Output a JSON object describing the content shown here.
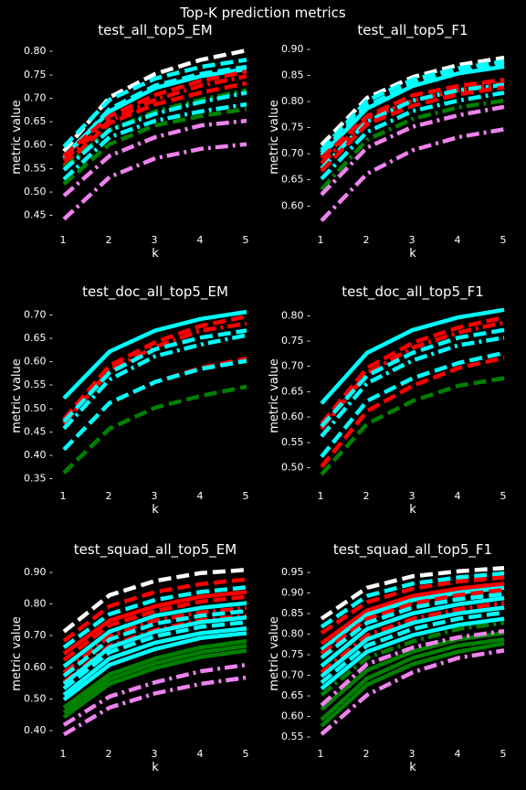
{
  "figure": {
    "title": "Top-K prediction metrics"
  },
  "colors": {
    "background": "#000000",
    "text": "#ffffff",
    "white": "#ffffff",
    "cyan": "#00ffff",
    "red": "#ff0000",
    "green": "#008000",
    "violet": "#ee82ee"
  },
  "chart_data": [
    {
      "type": "line",
      "title": "test_all_top5_EM",
      "xlabel": "k",
      "ylabel": "metric value",
      "x": [
        1,
        2,
        3,
        4,
        5
      ],
      "xticks": [
        1,
        2,
        3,
        4,
        5
      ],
      "ylim": [
        0.42,
        0.81
      ],
      "yticks": [
        0.45,
        0.5,
        0.55,
        0.6,
        0.65,
        0.7,
        0.75,
        0.8
      ],
      "grid": false,
      "series": [
        {
          "color": "white",
          "style": "dash",
          "values": [
            0.585,
            0.7,
            0.75,
            0.78,
            0.8
          ]
        },
        {
          "color": "cyan",
          "style": "dash",
          "values": [
            0.595,
            0.695,
            0.74,
            0.765,
            0.78
          ]
        },
        {
          "color": "cyan",
          "style": "solid",
          "values": [
            0.575,
            0.67,
            0.72,
            0.745,
            0.76
          ]
        },
        {
          "color": "cyan",
          "style": "dash",
          "values": [
            0.57,
            0.675,
            0.725,
            0.75,
            0.765
          ]
        },
        {
          "color": "red",
          "style": "dash",
          "values": [
            0.575,
            0.66,
            0.705,
            0.735,
            0.755
          ]
        },
        {
          "color": "red",
          "style": "dashdot",
          "values": [
            0.565,
            0.65,
            0.695,
            0.725,
            0.745
          ]
        },
        {
          "color": "red",
          "style": "dash",
          "values": [
            0.555,
            0.645,
            0.685,
            0.71,
            0.73
          ]
        },
        {
          "color": "green",
          "style": "dashdot",
          "values": [
            0.55,
            0.63,
            0.67,
            0.695,
            0.715
          ]
        },
        {
          "color": "cyan",
          "style": "dashdot",
          "values": [
            0.545,
            0.63,
            0.665,
            0.69,
            0.71
          ]
        },
        {
          "color": "cyan",
          "style": "dashdot",
          "values": [
            0.525,
            0.615,
            0.65,
            0.67,
            0.685
          ]
        },
        {
          "color": "green",
          "style": "dash",
          "values": [
            0.515,
            0.6,
            0.64,
            0.66,
            0.675
          ]
        },
        {
          "color": "violet",
          "style": "dashdot",
          "values": [
            0.49,
            0.575,
            0.615,
            0.64,
            0.65
          ]
        },
        {
          "color": "violet",
          "style": "dashdot",
          "values": [
            0.44,
            0.53,
            0.57,
            0.59,
            0.6
          ]
        }
      ]
    },
    {
      "type": "line",
      "title": "test_all_top5_F1",
      "xlabel": "k",
      "ylabel": "metric value",
      "x": [
        1,
        2,
        3,
        4,
        5
      ],
      "xticks": [
        1,
        2,
        3,
        4,
        5
      ],
      "ylim": [
        0.555,
        0.905
      ],
      "yticks": [
        0.6,
        0.65,
        0.7,
        0.75,
        0.8,
        0.85,
        0.9
      ],
      "grid": false,
      "series": [
        {
          "color": "white",
          "style": "dash",
          "values": [
            0.715,
            0.805,
            0.845,
            0.868,
            0.882
          ]
        },
        {
          "color": "cyan",
          "style": "dash",
          "values": [
            0.705,
            0.8,
            0.84,
            0.862,
            0.875
          ]
        },
        {
          "color": "cyan",
          "style": "solid",
          "values": [
            0.695,
            0.785,
            0.828,
            0.852,
            0.865
          ]
        },
        {
          "color": "cyan",
          "style": "dash",
          "values": [
            0.7,
            0.79,
            0.832,
            0.855,
            0.868
          ]
        },
        {
          "color": "red",
          "style": "dash",
          "values": [
            0.69,
            0.77,
            0.81,
            0.828,
            0.84
          ]
        },
        {
          "color": "red",
          "style": "dashdot",
          "values": [
            0.68,
            0.765,
            0.8,
            0.82,
            0.833
          ]
        },
        {
          "color": "cyan",
          "style": "dashdot",
          "values": [
            0.67,
            0.76,
            0.8,
            0.82,
            0.83
          ]
        },
        {
          "color": "red",
          "style": "dash",
          "values": [
            0.665,
            0.755,
            0.79,
            0.812,
            0.825
          ]
        },
        {
          "color": "cyan",
          "style": "dashdot",
          "values": [
            0.65,
            0.74,
            0.78,
            0.8,
            0.815
          ]
        },
        {
          "color": "green",
          "style": "dashdot",
          "values": [
            0.63,
            0.725,
            0.765,
            0.787,
            0.8
          ]
        },
        {
          "color": "violet",
          "style": "dashdot",
          "values": [
            0.62,
            0.71,
            0.75,
            0.772,
            0.788
          ]
        },
        {
          "color": "violet",
          "style": "dashdot",
          "values": [
            0.57,
            0.66,
            0.705,
            0.73,
            0.745
          ]
        }
      ]
    },
    {
      "type": "line",
      "title": "test_doc_all_top5_EM",
      "xlabel": "k",
      "ylabel": "metric value",
      "x": [
        1,
        2,
        3,
        4,
        5
      ],
      "xticks": [
        1,
        2,
        3,
        4,
        5
      ],
      "ylim": [
        0.335,
        0.715
      ],
      "yticks": [
        0.35,
        0.4,
        0.45,
        0.5,
        0.55,
        0.6,
        0.65,
        0.7
      ],
      "grid": false,
      "series": [
        {
          "color": "cyan",
          "style": "solid",
          "values": [
            0.52,
            0.62,
            0.665,
            0.69,
            0.705
          ]
        },
        {
          "color": "red",
          "style": "dash",
          "values": [
            0.475,
            0.59,
            0.64,
            0.675,
            0.695
          ]
        },
        {
          "color": "red",
          "style": "dashdot",
          "values": [
            0.465,
            0.58,
            0.63,
            0.665,
            0.68
          ]
        },
        {
          "color": "cyan",
          "style": "dash",
          "values": [
            0.47,
            0.575,
            0.625,
            0.65,
            0.665
          ]
        },
        {
          "color": "cyan",
          "style": "dashdot",
          "values": [
            0.455,
            0.56,
            0.61,
            0.635,
            0.655
          ]
        },
        {
          "color": "red",
          "style": "dash",
          "values": [
            0.41,
            0.51,
            0.555,
            0.585,
            0.605
          ]
        },
        {
          "color": "cyan",
          "style": "dash",
          "values": [
            0.41,
            0.51,
            0.555,
            0.583,
            0.6
          ]
        },
        {
          "color": "green",
          "style": "dash",
          "values": [
            0.36,
            0.455,
            0.5,
            0.525,
            0.545
          ]
        }
      ]
    },
    {
      "type": "line",
      "title": "test_doc_all_top5_F1",
      "xlabel": "k",
      "ylabel": "metric value",
      "x": [
        1,
        2,
        3,
        4,
        5
      ],
      "xticks": [
        1,
        2,
        3,
        4,
        5
      ],
      "ylim": [
        0.465,
        0.815
      ],
      "yticks": [
        0.5,
        0.55,
        0.6,
        0.65,
        0.7,
        0.75,
        0.8
      ],
      "grid": false,
      "series": [
        {
          "color": "cyan",
          "style": "solid",
          "values": [
            0.625,
            0.725,
            0.77,
            0.795,
            0.81
          ]
        },
        {
          "color": "red",
          "style": "dash",
          "values": [
            0.585,
            0.695,
            0.745,
            0.775,
            0.795
          ]
        },
        {
          "color": "red",
          "style": "dashdot",
          "values": [
            0.575,
            0.685,
            0.735,
            0.765,
            0.785
          ]
        },
        {
          "color": "cyan",
          "style": "dash",
          "values": [
            0.58,
            0.68,
            0.725,
            0.755,
            0.77
          ]
        },
        {
          "color": "cyan",
          "style": "dashdot",
          "values": [
            0.56,
            0.665,
            0.71,
            0.74,
            0.755
          ]
        },
        {
          "color": "cyan",
          "style": "dash",
          "values": [
            0.52,
            0.63,
            0.675,
            0.705,
            0.725
          ]
        },
        {
          "color": "red",
          "style": "dash",
          "values": [
            0.5,
            0.61,
            0.66,
            0.695,
            0.715
          ]
        },
        {
          "color": "green",
          "style": "dash",
          "values": [
            0.485,
            0.585,
            0.63,
            0.66,
            0.675
          ]
        }
      ]
    },
    {
      "type": "line",
      "title": "test_squad_all_top5_EM",
      "xlabel": "k",
      "ylabel": "metric value",
      "x": [
        1,
        2,
        3,
        4,
        5
      ],
      "xticks": [
        1,
        2,
        3,
        4,
        5
      ],
      "ylim": [
        0.36,
        0.92
      ],
      "yticks": [
        0.4,
        0.5,
        0.6,
        0.7,
        0.8,
        0.9
      ],
      "grid": false,
      "series": [
        {
          "color": "white",
          "style": "dash",
          "values": [
            0.71,
            0.825,
            0.87,
            0.895,
            0.905
          ]
        },
        {
          "color": "red",
          "style": "dash",
          "values": [
            0.68,
            0.79,
            0.835,
            0.86,
            0.875
          ]
        },
        {
          "color": "cyan",
          "style": "dash",
          "values": [
            0.66,
            0.765,
            0.81,
            0.835,
            0.85
          ]
        },
        {
          "color": "red",
          "style": "solid",
          "values": [
            0.64,
            0.745,
            0.79,
            0.82,
            0.835
          ]
        },
        {
          "color": "red",
          "style": "dash",
          "values": [
            0.62,
            0.73,
            0.775,
            0.805,
            0.82
          ]
        },
        {
          "color": "cyan",
          "style": "solid",
          "values": [
            0.6,
            0.71,
            0.76,
            0.785,
            0.8
          ]
        },
        {
          "color": "red",
          "style": "dashdot",
          "values": [
            0.58,
            0.695,
            0.745,
            0.77,
            0.785
          ]
        },
        {
          "color": "cyan",
          "style": "dash",
          "values": [
            0.57,
            0.685,
            0.735,
            0.76,
            0.775
          ]
        },
        {
          "color": "red",
          "style": "dashdot",
          "values": [
            0.55,
            0.665,
            0.715,
            0.745,
            0.76
          ]
        },
        {
          "color": "cyan",
          "style": "solid",
          "values": [
            0.545,
            0.66,
            0.71,
            0.74,
            0.755
          ]
        },
        {
          "color": "cyan",
          "style": "dash",
          "values": [
            0.53,
            0.645,
            0.695,
            0.725,
            0.74
          ]
        },
        {
          "color": "cyan",
          "style": "solid",
          "values": [
            0.51,
            0.625,
            0.675,
            0.705,
            0.72
          ]
        },
        {
          "color": "cyan",
          "style": "solid",
          "values": [
            0.495,
            0.605,
            0.655,
            0.69,
            0.705
          ]
        },
        {
          "color": "green",
          "style": "solid",
          "values": [
            0.47,
            0.575,
            0.625,
            0.66,
            0.68
          ]
        },
        {
          "color": "green",
          "style": "solid",
          "values": [
            0.455,
            0.56,
            0.61,
            0.645,
            0.665
          ]
        },
        {
          "color": "green",
          "style": "solid",
          "values": [
            0.44,
            0.545,
            0.595,
            0.63,
            0.65
          ]
        },
        {
          "color": "violet",
          "style": "dashdot",
          "values": [
            0.415,
            0.505,
            0.55,
            0.585,
            0.605
          ]
        },
        {
          "color": "violet",
          "style": "dashdot",
          "values": [
            0.385,
            0.47,
            0.515,
            0.545,
            0.565
          ]
        }
      ]
    },
    {
      "type": "line",
      "title": "test_squad_all_top5_F1",
      "xlabel": "k",
      "ylabel": "metric value",
      "x": [
        1,
        2,
        3,
        4,
        5
      ],
      "xticks": [
        1,
        2,
        3,
        4,
        5
      ],
      "ylim": [
        0.535,
        0.965
      ],
      "yticks": [
        0.55,
        0.6,
        0.65,
        0.7,
        0.75,
        0.8,
        0.85,
        0.9,
        0.95
      ],
      "grid": false,
      "series": [
        {
          "color": "white",
          "style": "dash",
          "values": [
            0.835,
            0.91,
            0.938,
            0.95,
            0.958
          ]
        },
        {
          "color": "cyan",
          "style": "dash",
          "values": [
            0.815,
            0.89,
            0.92,
            0.935,
            0.945
          ]
        },
        {
          "color": "red",
          "style": "dash",
          "values": [
            0.8,
            0.875,
            0.908,
            0.925,
            0.935
          ]
        },
        {
          "color": "red",
          "style": "solid",
          "values": [
            0.775,
            0.855,
            0.89,
            0.908,
            0.92
          ]
        },
        {
          "color": "cyan",
          "style": "solid",
          "values": [
            0.76,
            0.845,
            0.88,
            0.898,
            0.91
          ]
        },
        {
          "color": "red",
          "style": "dash",
          "values": [
            0.75,
            0.835,
            0.872,
            0.892,
            0.905
          ]
        },
        {
          "color": "cyan",
          "style": "dash",
          "values": [
            0.74,
            0.825,
            0.862,
            0.882,
            0.895
          ]
        },
        {
          "color": "cyan",
          "style": "solid",
          "values": [
            0.72,
            0.81,
            0.848,
            0.87,
            0.885
          ]
        },
        {
          "color": "red",
          "style": "dashdot",
          "values": [
            0.705,
            0.795,
            0.835,
            0.858,
            0.873
          ]
        },
        {
          "color": "cyan",
          "style": "solid",
          "values": [
            0.695,
            0.785,
            0.825,
            0.848,
            0.862
          ]
        },
        {
          "color": "cyan",
          "style": "dash",
          "values": [
            0.68,
            0.77,
            0.81,
            0.835,
            0.85
          ]
        },
        {
          "color": "cyan",
          "style": "solid",
          "values": [
            0.665,
            0.755,
            0.795,
            0.82,
            0.835
          ]
        },
        {
          "color": "green",
          "style": "dashdot",
          "values": [
            0.65,
            0.74,
            0.78,
            0.81,
            0.825
          ]
        },
        {
          "color": "green",
          "style": "solid",
          "values": [
            0.615,
            0.71,
            0.755,
            0.785,
            0.8
          ]
        },
        {
          "color": "green",
          "style": "solid",
          "values": [
            0.59,
            0.69,
            0.74,
            0.77,
            0.785
          ]
        },
        {
          "color": "green",
          "style": "solid",
          "values": [
            0.575,
            0.675,
            0.725,
            0.755,
            0.775
          ]
        },
        {
          "color": "violet",
          "style": "dashdot",
          "values": [
            0.625,
            0.725,
            0.765,
            0.79,
            0.805
          ]
        },
        {
          "color": "violet",
          "style": "dashdot",
          "values": [
            0.555,
            0.65,
            0.705,
            0.74,
            0.758
          ]
        }
      ]
    }
  ]
}
